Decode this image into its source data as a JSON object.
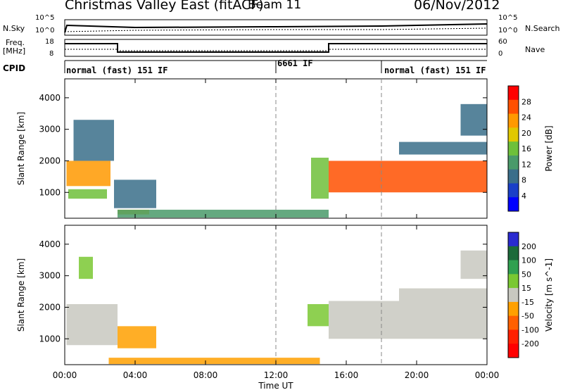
{
  "header": {
    "title": "Christmas Valley East (fitACF)",
    "beam": "Beam 11",
    "date": "06/Nov/2012"
  },
  "strip_labels": {
    "nsky": "N.Sky",
    "nsky_ticks": [
      "10^5",
      "10^0"
    ],
    "nsearch": "N.Search",
    "nsearch_ticks": [
      "10^5",
      "10^0"
    ],
    "freq": "Freq.",
    "freq_unit": "[MHz]",
    "freq_ticks": [
      "18",
      "8"
    ],
    "nave": "Nave",
    "nave_ticks": [
      "60",
      "0"
    ],
    "cpid": "CPID"
  },
  "cpid_segments": [
    {
      "label": "normal (fast) 151 IF",
      "start_h": 0.0
    },
    {
      "label": "6661 IF",
      "start_h": 12.0
    },
    {
      "label": "normal (fast) 151 IF",
      "start_h": 18.0
    }
  ],
  "colors": {
    "power_scale": [
      "#0000ff",
      "#1a3fc8",
      "#3a6e8a",
      "#4a9a6a",
      "#6ec03a",
      "#e0c800",
      "#ff9900",
      "#ff5000",
      "#ff0000"
    ],
    "velocity_scale": [
      "#2a2ad0",
      "#1c6a3a",
      "#30a050",
      "#7ac832",
      "#c8c8c0",
      "#ffa000",
      "#ff6000",
      "#ff2000",
      "#ff0000"
    ]
  },
  "chart_data": [
    {
      "type": "heatmap",
      "panel": "power",
      "xlabel": "Time UT",
      "ylabel": "Slant Range [km]",
      "xticks": [
        "00:00",
        "04:00",
        "08:00",
        "12:00",
        "16:00",
        "20:00",
        "00:00"
      ],
      "xlim": [
        0,
        24
      ],
      "yticks": [
        "1000",
        "2000",
        "3000",
        "4000"
      ],
      "ylim": [
        180,
        4600
      ],
      "colorbar": {
        "label": "Power [dB]",
        "ticks": [
          "28",
          "24",
          "20",
          "16",
          "12",
          "8",
          "4"
        ],
        "range": [
          0,
          30
        ]
      },
      "regions": [
        {
          "t": [
            0.1,
            2.6
          ],
          "r": [
            1200,
            2000
          ],
          "value": 24
        },
        {
          "t": [
            0.2,
            2.4
          ],
          "r": [
            800,
            1100
          ],
          "value": 14
        },
        {
          "t": [
            0.5,
            2.8
          ],
          "r": [
            2000,
            3300
          ],
          "value": 8
        },
        {
          "t": [
            2.8,
            5.2
          ],
          "r": [
            500,
            1400
          ],
          "value": 8
        },
        {
          "t": [
            3.0,
            4.8
          ],
          "r": [
            300,
            450
          ],
          "value": 20
        },
        {
          "t": [
            3.0,
            15.0
          ],
          "r": [
            200,
            450
          ],
          "value": 10
        },
        {
          "t": [
            14.0,
            15.0
          ],
          "r": [
            800,
            2100
          ],
          "value": 16
        },
        {
          "t": [
            15.0,
            24.0
          ],
          "r": [
            1000,
            2000
          ],
          "value": 26
        },
        {
          "t": [
            19.0,
            24.0
          ],
          "r": [
            2200,
            2600
          ],
          "value": 8
        },
        {
          "t": [
            22.5,
            24.0
          ],
          "r": [
            2800,
            3800
          ],
          "value": 6
        }
      ]
    },
    {
      "type": "heatmap",
      "panel": "velocity",
      "xlabel": "Time UT",
      "ylabel": "Slant Range [km]",
      "xticks": [
        "00:00",
        "04:00",
        "08:00",
        "12:00",
        "16:00",
        "20:00",
        "00:00"
      ],
      "xlim": [
        0,
        24
      ],
      "yticks": [
        "1000",
        "2000",
        "3000",
        "4000"
      ],
      "ylim": [
        180,
        4600
      ],
      "colorbar": {
        "label": "Velocity [m s^-1]",
        "ticks": [
          "200",
          "100",
          "50",
          "15",
          "-15",
          "-50",
          "-100",
          "-200"
        ],
        "range": [
          -250,
          250
        ]
      },
      "regions": [
        {
          "t": [
            0.1,
            3.0
          ],
          "r": [
            800,
            2100
          ],
          "value": 0
        },
        {
          "t": [
            0.8,
            1.6
          ],
          "r": [
            2900,
            3600
          ],
          "value": 60
        },
        {
          "t": [
            3.0,
            5.2
          ],
          "r": [
            700,
            1400
          ],
          "value": -40
        },
        {
          "t": [
            2.5,
            14.5
          ],
          "r": [
            200,
            400
          ],
          "value": -60
        },
        {
          "t": [
            13.8,
            15.0
          ],
          "r": [
            1400,
            2100
          ],
          "value": 60
        },
        {
          "t": [
            15.0,
            24.0
          ],
          "r": [
            1000,
            2200
          ],
          "value": 0
        },
        {
          "t": [
            19.0,
            24.0
          ],
          "r": [
            2200,
            2600
          ],
          "value": 0
        },
        {
          "t": [
            22.5,
            24.0
          ],
          "r": [
            2900,
            3800
          ],
          "value": 0
        }
      ]
    }
  ]
}
